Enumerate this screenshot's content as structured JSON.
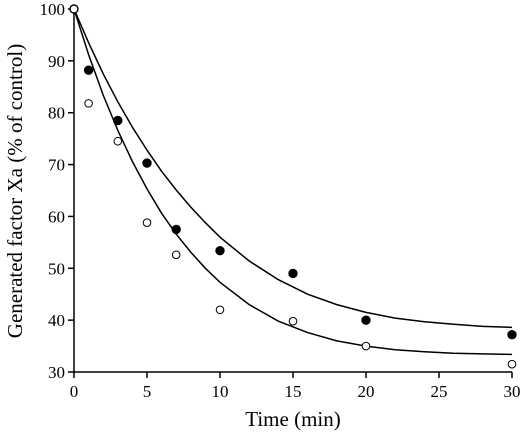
{
  "chart_data": {
    "type": "scatter",
    "xlabel": "Time (min)",
    "ylabel": "Generated factor Xa (% of control)",
    "xlim": [
      0,
      30
    ],
    "ylim": [
      30,
      100
    ],
    "xticks": [
      0,
      5,
      10,
      15,
      20,
      25,
      30
    ],
    "yticks": [
      30,
      40,
      50,
      60,
      70,
      80,
      90,
      100
    ],
    "grid": false,
    "legend": "none",
    "series": [
      {
        "marker": "filled-circle",
        "color": "#000000",
        "points": [
          {
            "x": 0,
            "y": 100
          },
          {
            "x": 1,
            "y": 88.2
          },
          {
            "x": 3,
            "y": 78.5
          },
          {
            "x": 5,
            "y": 70.3
          },
          {
            "x": 7,
            "y": 57.5
          },
          {
            "x": 10,
            "y": 53.4
          },
          {
            "x": 15,
            "y": 49.0
          },
          {
            "x": 20,
            "y": 40.0
          },
          {
            "x": 30,
            "y": 37.2
          }
        ],
        "fit_curve": [
          {
            "x": 0,
            "y": 100
          },
          {
            "x": 1,
            "y": 93.5
          },
          {
            "x": 2,
            "y": 87.5
          },
          {
            "x": 3,
            "y": 82.1
          },
          {
            "x": 4,
            "y": 77.2
          },
          {
            "x": 5,
            "y": 72.8
          },
          {
            "x": 6,
            "y": 68.7
          },
          {
            "x": 7,
            "y": 65.1
          },
          {
            "x": 8,
            "y": 61.8
          },
          {
            "x": 9,
            "y": 58.8
          },
          {
            "x": 10,
            "y": 56.0
          },
          {
            "x": 12,
            "y": 51.4
          },
          {
            "x": 14,
            "y": 47.8
          },
          {
            "x": 16,
            "y": 45.0
          },
          {
            "x": 18,
            "y": 43.0
          },
          {
            "x": 20,
            "y": 41.5
          },
          {
            "x": 22,
            "y": 40.4
          },
          {
            "x": 24,
            "y": 39.7
          },
          {
            "x": 26,
            "y": 39.2
          },
          {
            "x": 28,
            "y": 38.8
          },
          {
            "x": 30,
            "y": 38.6
          }
        ]
      },
      {
        "marker": "open-circle",
        "color": "#000000",
        "points": [
          {
            "x": 0,
            "y": 100
          },
          {
            "x": 1,
            "y": 81.8
          },
          {
            "x": 3,
            "y": 74.5
          },
          {
            "x": 5,
            "y": 58.8
          },
          {
            "x": 7,
            "y": 52.6
          },
          {
            "x": 10,
            "y": 42.0
          },
          {
            "x": 15,
            "y": 39.8
          },
          {
            "x": 20,
            "y": 35.0
          },
          {
            "x": 30,
            "y": 31.5
          }
        ],
        "fit_curve": [
          {
            "x": 0,
            "y": 100
          },
          {
            "x": 1,
            "y": 91.2
          },
          {
            "x": 2,
            "y": 83.4
          },
          {
            "x": 3,
            "y": 76.6
          },
          {
            "x": 4,
            "y": 70.6
          },
          {
            "x": 5,
            "y": 65.3
          },
          {
            "x": 6,
            "y": 60.6
          },
          {
            "x": 7,
            "y": 56.6
          },
          {
            "x": 8,
            "y": 53.1
          },
          {
            "x": 9,
            "y": 50.0
          },
          {
            "x": 10,
            "y": 47.3
          },
          {
            "x": 12,
            "y": 43.0
          },
          {
            "x": 14,
            "y": 39.8
          },
          {
            "x": 16,
            "y": 37.6
          },
          {
            "x": 18,
            "y": 36.0
          },
          {
            "x": 20,
            "y": 35.0
          },
          {
            "x": 22,
            "y": 34.3
          },
          {
            "x": 24,
            "y": 33.9
          },
          {
            "x": 26,
            "y": 33.6
          },
          {
            "x": 28,
            "y": 33.5
          },
          {
            "x": 30,
            "y": 33.4
          }
        ]
      }
    ]
  }
}
